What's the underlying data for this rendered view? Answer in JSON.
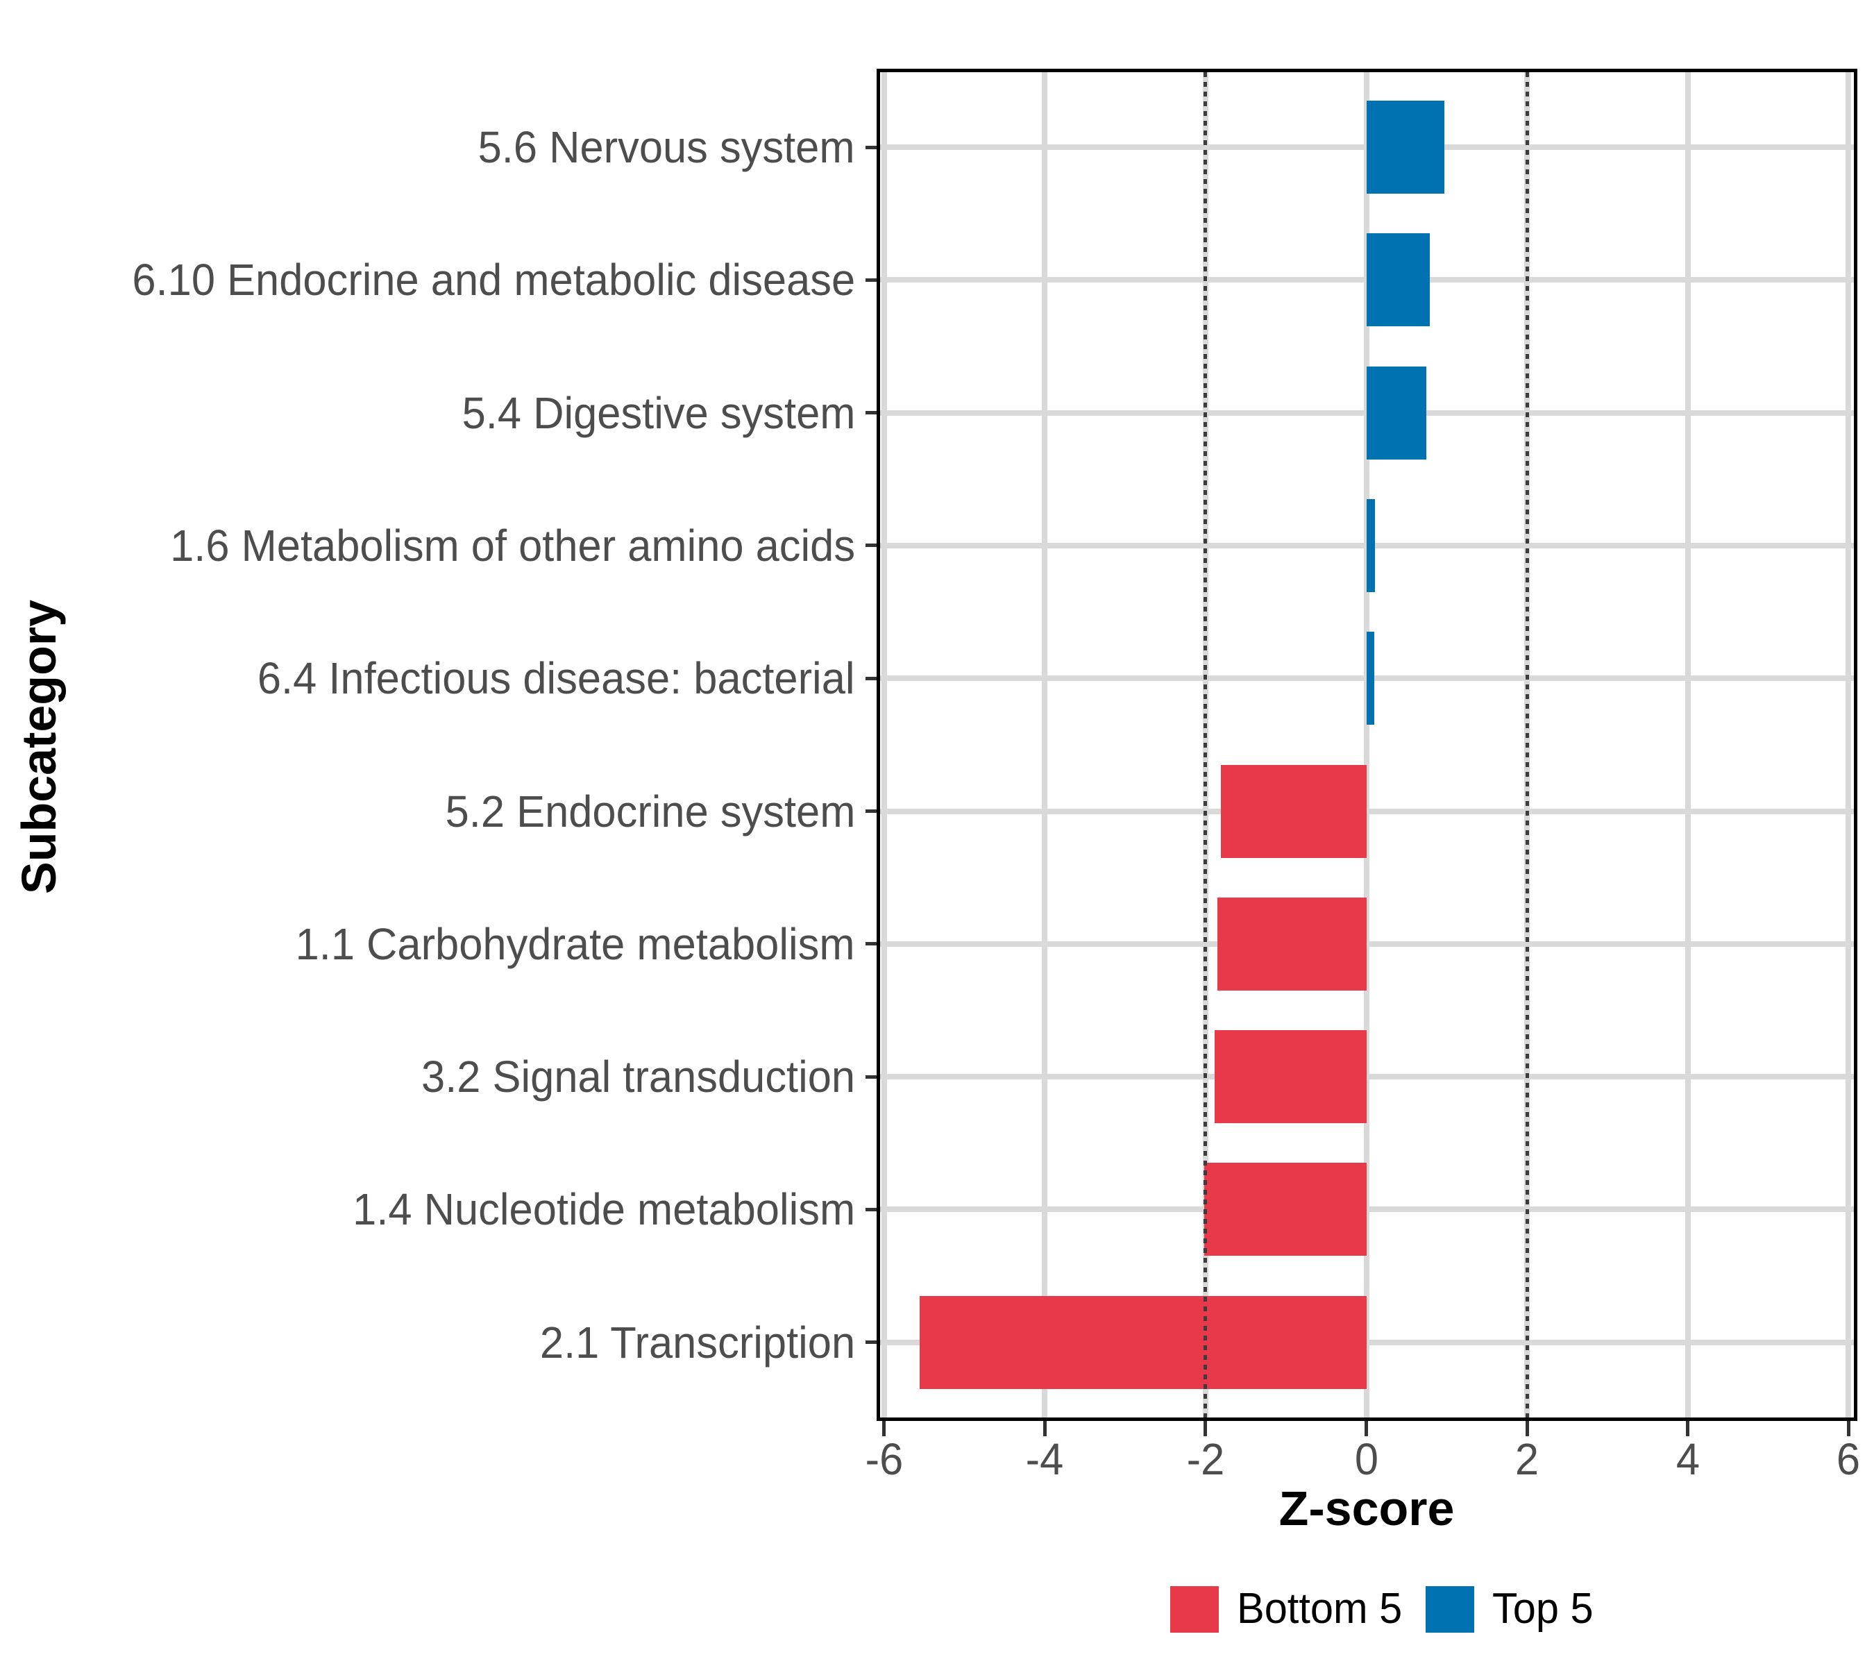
{
  "chart_data": {
    "type": "bar",
    "orientation": "horizontal",
    "title": "",
    "xlabel": "Z-score",
    "ylabel": "Subcategory",
    "xlim": [
      -6.05,
      6.07
    ],
    "x_ticks": [
      -6,
      -4,
      -2,
      0,
      2,
      4,
      6
    ],
    "grid": true,
    "reference_lines": {
      "values": [
        -2,
        2
      ],
      "style": "dotted",
      "color": "#3c3c3c"
    },
    "categories": [
      {
        "label": "5.6 Nervous system",
        "value": 0.97,
        "group": "top5"
      },
      {
        "label": "6.10 Endocrine and metabolic disease",
        "value": 0.79,
        "group": "top5"
      },
      {
        "label": "5.4 Digestive system",
        "value": 0.75,
        "group": "top5"
      },
      {
        "label": "1.6 Metabolism of other amino acids",
        "value": 0.11,
        "group": "top5"
      },
      {
        "label": "6.4 Infectious disease: bacterial",
        "value": 0.1,
        "group": "top5"
      },
      {
        "label": "5.2 Endocrine system",
        "value": -1.81,
        "group": "bottom5"
      },
      {
        "label": "1.1 Carbohydrate metabolism",
        "value": -1.85,
        "group": "bottom5"
      },
      {
        "label": "3.2 Signal transduction",
        "value": -1.89,
        "group": "bottom5"
      },
      {
        "label": "1.4 Nucleotide metabolism",
        "value": -2.02,
        "group": "bottom5"
      },
      {
        "label": "2.1 Transcription",
        "value": -5.56,
        "group": "bottom5"
      }
    ],
    "legend": {
      "position": "bottom",
      "items": [
        {
          "label": "Bottom 5",
          "group": "bottom5",
          "color": "#E8394A"
        },
        {
          "label": "Top 5",
          "group": "top5",
          "color": "#0072B2"
        }
      ]
    },
    "colors": {
      "bottom5": "#E8394A",
      "top5": "#0072B2"
    },
    "styles": {
      "grid_color": "#d9d9d9",
      "axis_text_color": "#4d4d4d",
      "tick_color": "#333333",
      "panel_border_color": "#000000",
      "background": "#ffffff"
    }
  }
}
